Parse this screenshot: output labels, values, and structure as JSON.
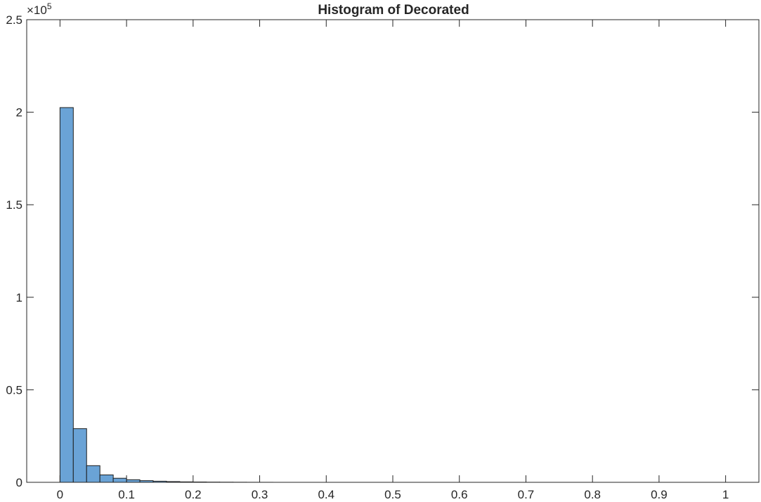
{
  "chart_data": {
    "type": "bar",
    "title": "Histogram of Decorated",
    "xlabel": "",
    "ylabel": "",
    "xlim": [
      -0.05,
      1.05
    ],
    "ylim": [
      0,
      250000
    ],
    "exponent_label": "×10",
    "exponent_power": "5",
    "grid": false,
    "bin_width": 0.02,
    "bin_edges_start": 0,
    "values": [
      202500,
      29000,
      9000,
      4000,
      2200,
      1400,
      900,
      600,
      400,
      250,
      180,
      120,
      80,
      50,
      30,
      20
    ],
    "x_ticks": [
      0,
      0.1,
      0.2,
      0.3,
      0.4,
      0.5,
      0.6,
      0.7,
      0.8,
      0.9,
      1
    ],
    "x_tick_labels": [
      "0",
      "0.1",
      "0.2",
      "0.3",
      "0.4",
      "0.5",
      "0.6",
      "0.7",
      "0.8",
      "0.9",
      "1"
    ],
    "y_ticks": [
      0,
      50000,
      100000,
      150000,
      200000,
      250000
    ],
    "y_tick_labels": [
      "0",
      "0.5",
      "1",
      "1.5",
      "2",
      "2.5"
    ],
    "colors": {
      "bar_fill": "#6aa3d6",
      "bar_edge": "#1e1e1e",
      "axis": "#262626"
    }
  }
}
